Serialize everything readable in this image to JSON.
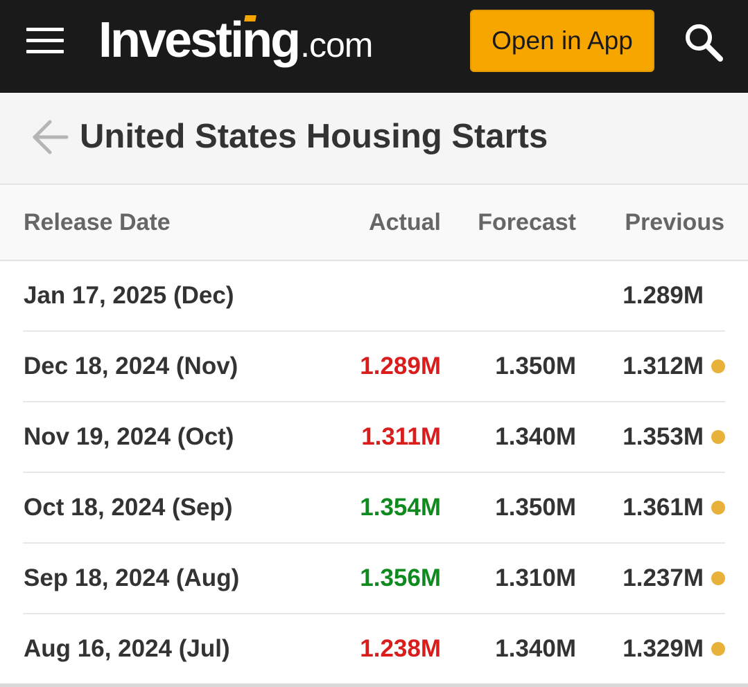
{
  "header": {
    "logo_main": "Investing",
    "logo_suffix": ".com",
    "open_app_label": "Open in App",
    "accent_color": "#f7a600"
  },
  "page": {
    "title": "United States Housing Starts"
  },
  "table": {
    "columns": {
      "release_date": "Release Date",
      "actual": "Actual",
      "forecast": "Forecast",
      "previous": "Previous"
    },
    "rows": [
      {
        "date": "Jan 17, 2025 (Dec)",
        "actual": "",
        "actual_status": "none",
        "forecast": "",
        "previous": "1.289M",
        "revised": false
      },
      {
        "date": "Dec 18, 2024 (Nov)",
        "actual": "1.289M",
        "actual_status": "negative",
        "forecast": "1.350M",
        "previous": "1.312M",
        "revised": true
      },
      {
        "date": "Nov 19, 2024 (Oct)",
        "actual": "1.311M",
        "actual_status": "negative",
        "forecast": "1.340M",
        "previous": "1.353M",
        "revised": true
      },
      {
        "date": "Oct 18, 2024 (Sep)",
        "actual": "1.354M",
        "actual_status": "positive",
        "forecast": "1.350M",
        "previous": "1.361M",
        "revised": true
      },
      {
        "date": "Sep 18, 2024 (Aug)",
        "actual": "1.356M",
        "actual_status": "positive",
        "forecast": "1.310M",
        "previous": "1.237M",
        "revised": true
      },
      {
        "date": "Aug 16, 2024 (Jul)",
        "actual": "1.238M",
        "actual_status": "negative",
        "forecast": "1.340M",
        "previous": "1.329M",
        "revised": true
      }
    ],
    "colors": {
      "negative": "#d91c1c",
      "positive": "#0f8a1e",
      "revised_dot": "#e8b23a"
    }
  },
  "icons": {
    "menu": "hamburger-menu-icon",
    "search": "search-icon",
    "back": "back-arrow-icon",
    "revised": "revised-dot-icon"
  }
}
